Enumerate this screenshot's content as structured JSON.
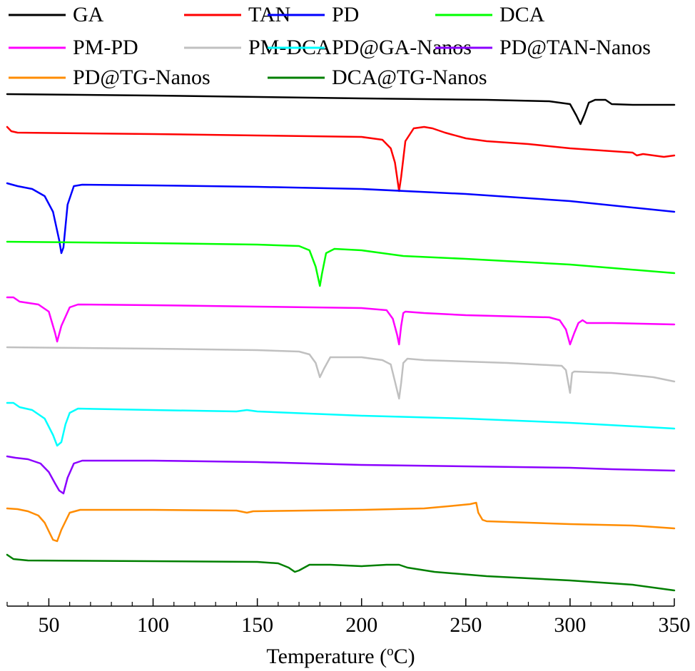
{
  "chart_data": {
    "type": "line",
    "title": "",
    "xlabel": "Temperature (°C)",
    "xlabel_parts": {
      "pre": "Temperature (",
      "sup": "o",
      "post": "C)"
    },
    "ylabel": "",
    "xlim": [
      30,
      350
    ],
    "x_ticks": [
      50,
      100,
      150,
      200,
      250,
      300,
      350
    ],
    "x_tick_labels": [
      "50",
      "100",
      "150",
      "200",
      "250",
      "300",
      "350"
    ],
    "x_minor_step": 10,
    "y_axis_visible": false,
    "grid": false,
    "legend_position": "top",
    "series": [
      {
        "name": "GA",
        "color": "#000000",
        "points": [
          [
            30,
            0
          ],
          [
            100,
            -2
          ],
          [
            200,
            -6
          ],
          [
            260,
            -8
          ],
          [
            290,
            -10
          ],
          [
            300,
            -14
          ],
          [
            303,
            -30
          ],
          [
            305,
            -42
          ],
          [
            307,
            -28
          ],
          [
            309,
            -12
          ],
          [
            312,
            -8
          ],
          [
            317,
            -8
          ],
          [
            320,
            -14
          ],
          [
            330,
            -15
          ],
          [
            350,
            -15
          ]
        ]
      },
      {
        "name": "TAN",
        "color": "#ff0000",
        "points": [
          [
            30,
            0
          ],
          [
            32,
            -6
          ],
          [
            35,
            -8
          ],
          [
            100,
            -10
          ],
          [
            150,
            -12
          ],
          [
            200,
            -14
          ],
          [
            210,
            -18
          ],
          [
            214,
            -30
          ],
          [
            216,
            -50
          ],
          [
            218,
            -90
          ],
          [
            219,
            -70
          ],
          [
            221,
            -20
          ],
          [
            225,
            -2
          ],
          [
            230,
            0
          ],
          [
            234,
            -2
          ],
          [
            240,
            -8
          ],
          [
            250,
            -16
          ],
          [
            260,
            -20
          ],
          [
            280,
            -24
          ],
          [
            300,
            -30
          ],
          [
            320,
            -34
          ],
          [
            330,
            -36
          ],
          [
            332,
            -40
          ],
          [
            335,
            -38
          ],
          [
            340,
            -40
          ],
          [
            345,
            -42
          ],
          [
            350,
            -40
          ]
        ]
      },
      {
        "name": "PD",
        "color": "#0000ff",
        "points": [
          [
            30,
            0
          ],
          [
            35,
            -4
          ],
          [
            42,
            -8
          ],
          [
            48,
            -18
          ],
          [
            52,
            -40
          ],
          [
            55,
            -80
          ],
          [
            56,
            -98
          ],
          [
            57,
            -90
          ],
          [
            59,
            -30
          ],
          [
            62,
            -4
          ],
          [
            66,
            -2
          ],
          [
            100,
            -3
          ],
          [
            150,
            -5
          ],
          [
            200,
            -8
          ],
          [
            250,
            -15
          ],
          [
            300,
            -25
          ],
          [
            350,
            -40
          ]
        ]
      },
      {
        "name": "DCA",
        "color": "#00ff00",
        "points": [
          [
            30,
            0
          ],
          [
            100,
            -2
          ],
          [
            150,
            -4
          ],
          [
            170,
            -6
          ],
          [
            175,
            -12
          ],
          [
            178,
            -35
          ],
          [
            180,
            -62
          ],
          [
            181,
            -45
          ],
          [
            183,
            -16
          ],
          [
            187,
            -10
          ],
          [
            200,
            -12
          ],
          [
            210,
            -16
          ],
          [
            220,
            -20
          ],
          [
            250,
            -24
          ],
          [
            300,
            -32
          ],
          [
            350,
            -44
          ]
        ]
      },
      {
        "name": "PM-PD",
        "color": "#ff00ff",
        "points": [
          [
            30,
            0
          ],
          [
            33,
            0
          ],
          [
            36,
            -6
          ],
          [
            45,
            -10
          ],
          [
            50,
            -20
          ],
          [
            53,
            -50
          ],
          [
            54,
            -62
          ],
          [
            56,
            -40
          ],
          [
            60,
            -14
          ],
          [
            64,
            -10
          ],
          [
            100,
            -11
          ],
          [
            150,
            -13
          ],
          [
            200,
            -15
          ],
          [
            212,
            -18
          ],
          [
            215,
            -30
          ],
          [
            217,
            -52
          ],
          [
            218,
            -66
          ],
          [
            219,
            -40
          ],
          [
            220,
            -22
          ],
          [
            221,
            -20
          ],
          [
            230,
            -22
          ],
          [
            250,
            -25
          ],
          [
            290,
            -28
          ],
          [
            295,
            -32
          ],
          [
            298,
            -45
          ],
          [
            300,
            -66
          ],
          [
            302,
            -50
          ],
          [
            304,
            -36
          ],
          [
            306,
            -32
          ],
          [
            308,
            -36
          ],
          [
            320,
            -36
          ],
          [
            350,
            -38
          ]
        ]
      },
      {
        "name": "PM-DCA",
        "color": "#c0c0c0",
        "points": [
          [
            30,
            0
          ],
          [
            100,
            -2
          ],
          [
            150,
            -4
          ],
          [
            170,
            -6
          ],
          [
            175,
            -10
          ],
          [
            178,
            -22
          ],
          [
            180,
            -42
          ],
          [
            182,
            -30
          ],
          [
            185,
            -14
          ],
          [
            200,
            -14
          ],
          [
            210,
            -18
          ],
          [
            214,
            -24
          ],
          [
            216,
            -48
          ],
          [
            218,
            -72
          ],
          [
            219,
            -50
          ],
          [
            220,
            -22
          ],
          [
            222,
            -16
          ],
          [
            230,
            -18
          ],
          [
            270,
            -22
          ],
          [
            296,
            -26
          ],
          [
            298,
            -32
          ],
          [
            299,
            -48
          ],
          [
            300,
            -64
          ],
          [
            301,
            -36
          ],
          [
            302,
            -34
          ],
          [
            320,
            -36
          ],
          [
            340,
            -42
          ],
          [
            350,
            -48
          ]
        ]
      },
      {
        "name": "PD@GA-Nanos",
        "color": "#00ffff",
        "points": [
          [
            30,
            0
          ],
          [
            33,
            0
          ],
          [
            36,
            -6
          ],
          [
            42,
            -10
          ],
          [
            48,
            -22
          ],
          [
            52,
            -45
          ],
          [
            54,
            -60
          ],
          [
            56,
            -55
          ],
          [
            58,
            -30
          ],
          [
            60,
            -14
          ],
          [
            64,
            -8
          ],
          [
            100,
            -10
          ],
          [
            140,
            -12
          ],
          [
            145,
            -10
          ],
          [
            150,
            -12
          ],
          [
            200,
            -18
          ],
          [
            250,
            -22
          ],
          [
            300,
            -28
          ],
          [
            350,
            -36
          ]
        ]
      },
      {
        "name": "PD@TAN-Nanos",
        "color": "#8b00ff",
        "points": [
          [
            30,
            0
          ],
          [
            34,
            -2
          ],
          [
            40,
            -4
          ],
          [
            46,
            -10
          ],
          [
            50,
            -22
          ],
          [
            53,
            -38
          ],
          [
            55,
            -48
          ],
          [
            57,
            -52
          ],
          [
            59,
            -30
          ],
          [
            62,
            -10
          ],
          [
            66,
            -6
          ],
          [
            100,
            -6
          ],
          [
            150,
            -8
          ],
          [
            200,
            -12
          ],
          [
            250,
            -14
          ],
          [
            300,
            -16
          ],
          [
            320,
            -18
          ],
          [
            350,
            -20
          ]
        ]
      },
      {
        "name": "PD@TG-Nanos",
        "color": "#ff8c00",
        "points": [
          [
            30,
            0
          ],
          [
            35,
            -1
          ],
          [
            40,
            -4
          ],
          [
            45,
            -10
          ],
          [
            48,
            -20
          ],
          [
            50,
            -32
          ],
          [
            52,
            -44
          ],
          [
            54,
            -46
          ],
          [
            56,
            -30
          ],
          [
            60,
            -6
          ],
          [
            65,
            -2
          ],
          [
            100,
            -2
          ],
          [
            140,
            -3
          ],
          [
            145,
            -6
          ],
          [
            148,
            -4
          ],
          [
            200,
            -2
          ],
          [
            230,
            0
          ],
          [
            245,
            4
          ],
          [
            252,
            6
          ],
          [
            255,
            8
          ],
          [
            256,
            -6
          ],
          [
            258,
            -16
          ],
          [
            260,
            -18
          ],
          [
            300,
            -22
          ],
          [
            330,
            -24
          ],
          [
            350,
            -28
          ]
        ]
      },
      {
        "name": "DCA@TG-Nanos",
        "color": "#007f00",
        "points": [
          [
            30,
            0
          ],
          [
            33,
            -6
          ],
          [
            40,
            -8
          ],
          [
            100,
            -9
          ],
          [
            150,
            -10
          ],
          [
            160,
            -12
          ],
          [
            165,
            -18
          ],
          [
            168,
            -24
          ],
          [
            170,
            -22
          ],
          [
            175,
            -14
          ],
          [
            185,
            -14
          ],
          [
            200,
            -16
          ],
          [
            212,
            -14
          ],
          [
            218,
            -14
          ],
          [
            222,
            -18
          ],
          [
            235,
            -24
          ],
          [
            260,
            -30
          ],
          [
            300,
            -36
          ],
          [
            330,
            -42
          ],
          [
            350,
            -50
          ]
        ]
      }
    ]
  }
}
